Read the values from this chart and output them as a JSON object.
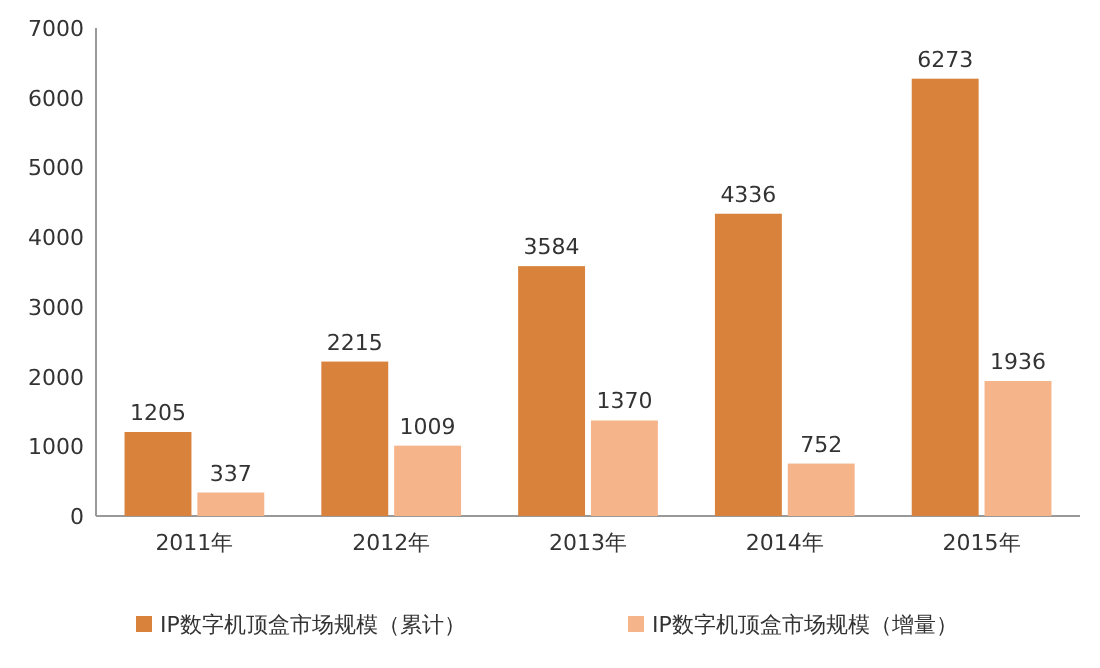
{
  "chart_data": {
    "type": "bar",
    "categories": [
      "2011年",
      "2012年",
      "2013年",
      "2014年",
      "2015年"
    ],
    "series": [
      {
        "name": "IP数字机顶盒市场规模（累计）",
        "color": "#d9823c",
        "values": [
          1205,
          2215,
          3584,
          4336,
          6273
        ]
      },
      {
        "name": "IP数字机顶盒市场规模（增量）",
        "color": "#f6b48a",
        "values": [
          337,
          1009,
          1370,
          752,
          1936
        ]
      }
    ],
    "ylim": [
      0,
      7000
    ],
    "yticks": [
      0,
      1000,
      2000,
      3000,
      4000,
      5000,
      6000,
      7000
    ],
    "data_labels": true,
    "legend": "bottom"
  }
}
